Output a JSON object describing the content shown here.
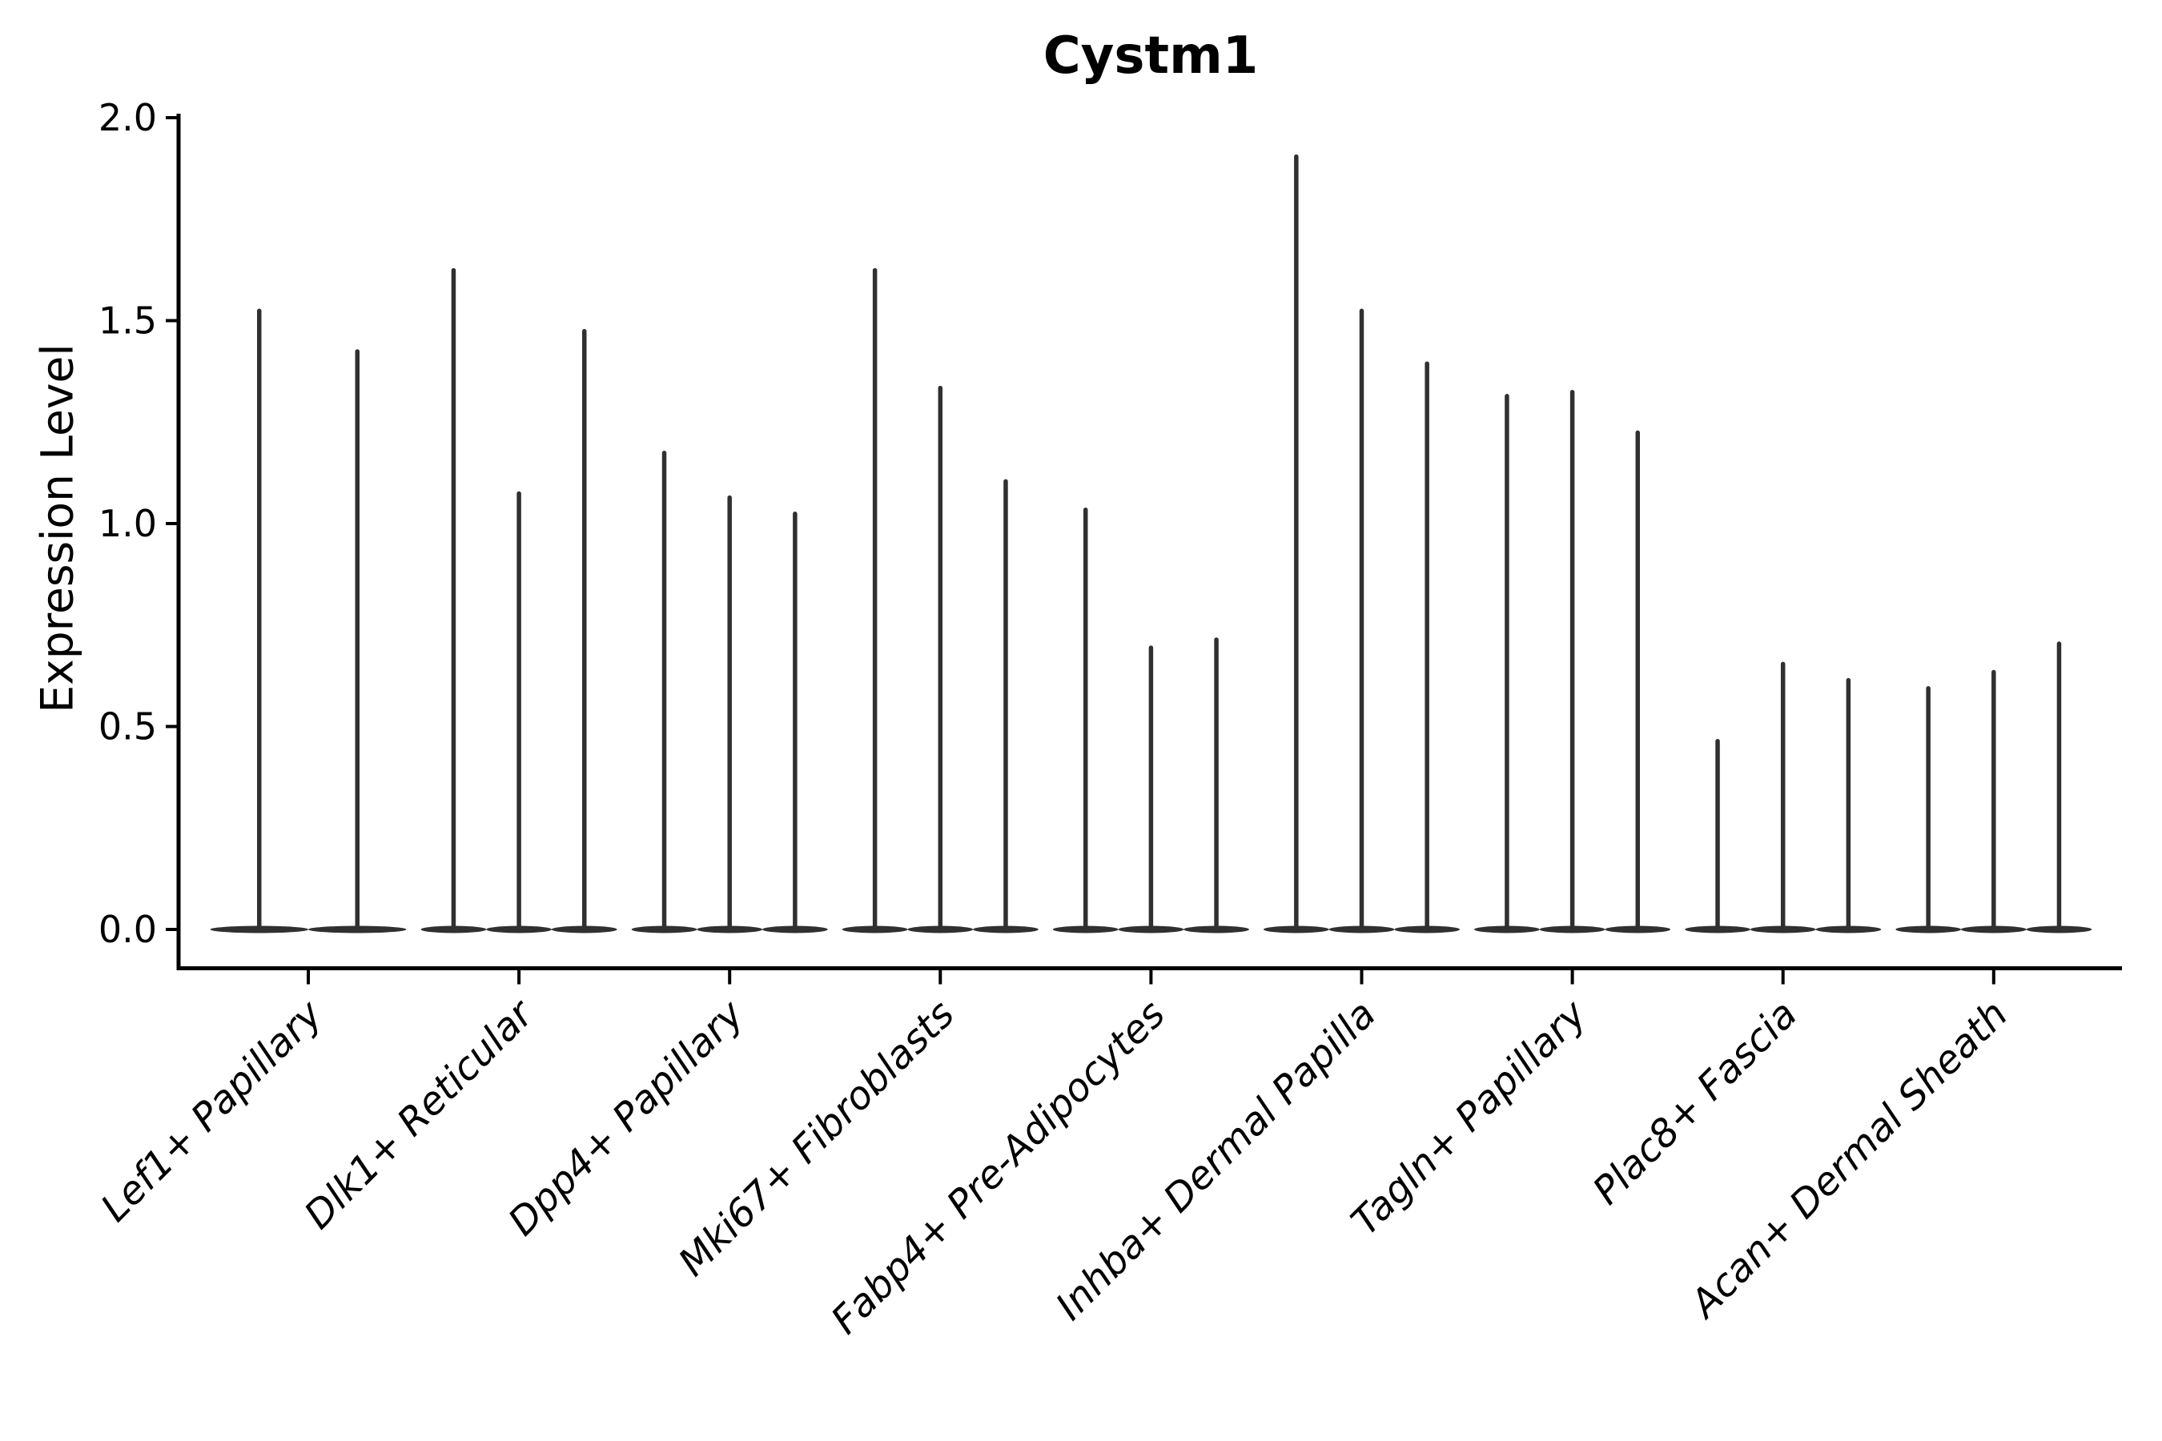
{
  "figure": {
    "title": "Cystm1",
    "ylabel": "Expression Level"
  },
  "chart_data": {
    "type": "violin",
    "title": "Cystm1",
    "xlabel": "",
    "ylabel": "Expression Level",
    "ylim": [
      -0.1,
      2.0
    ],
    "yticks": [
      0.0,
      0.5,
      1.0,
      1.5,
      2.0
    ],
    "ytick_labels": [
      "0.0",
      "0.5",
      "1.0",
      "1.5",
      "2.0"
    ],
    "grid": false,
    "legend": null,
    "categories": [
      "Lef1+ Papillary",
      "Dlk1+ Reticular",
      "Dpp4+ Papillary",
      "Mki67+ Fibroblasts",
      "Fabp4+ Pre-Adipocytes",
      "Inhba+ Dermal Papilla",
      "Tagln+ Papillary",
      "Plac8+ Fascia",
      "Acan+ Dermal Sheath"
    ],
    "groups": [
      {
        "category": "Lef1+ Papillary",
        "violin_max_values": [
          1.53,
          1.43
        ]
      },
      {
        "category": "Dlk1+ Reticular",
        "violin_max_values": [
          1.63,
          1.08,
          1.48
        ]
      },
      {
        "category": "Dpp4+ Papillary",
        "violin_max_values": [
          1.18,
          1.07,
          1.03
        ]
      },
      {
        "category": "Mki67+ Fibroblasts",
        "violin_max_values": [
          1.63,
          1.34,
          1.11
        ]
      },
      {
        "category": "Fabp4+ Pre-Adipocytes",
        "violin_max_values": [
          1.04,
          0.7,
          0.72
        ]
      },
      {
        "category": "Inhba+ Dermal Papilla",
        "violin_max_values": [
          1.91,
          1.53,
          1.4
        ]
      },
      {
        "category": "Tagln+ Papillary",
        "violin_max_values": [
          1.32,
          1.33,
          1.23
        ]
      },
      {
        "category": "Plac8+ Fascia",
        "violin_max_values": [
          0.47,
          0.66,
          0.62
        ]
      },
      {
        "category": "Acan+ Dermal Sheath",
        "violin_max_values": [
          0.6,
          0.64,
          0.71
        ]
      }
    ],
    "baseline_value": 0.0,
    "style": {
      "violin_color": "#303030",
      "axis_color": "#000000",
      "background": "#ffffff",
      "x_label_rotation_deg": 45,
      "x_label_style": "italic"
    }
  }
}
